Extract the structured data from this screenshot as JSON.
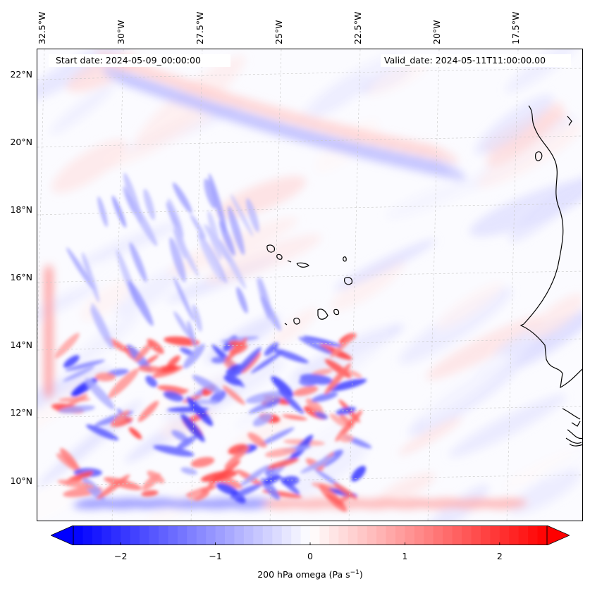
{
  "header": {
    "start_date": "Start date: 2024-05-09_00:00:00",
    "valid_date": "Valid_date: 2024-05-11T11:00:00.00"
  },
  "axes": {
    "lon_labels": [
      "32.5°W",
      "30°W",
      "27.5°W",
      "25°W",
      "22.5°W",
      "20°W",
      "17.5°W"
    ],
    "lat_labels": [
      "22°N",
      "20°N",
      "18°N",
      "16°N",
      "14°N",
      "12°N",
      "10°N"
    ]
  },
  "colorbar": {
    "ticks": [
      "−2",
      "−1",
      "0",
      "1",
      "2"
    ],
    "label_prefix": "200 hPa omega (Pa s",
    "label_sup": "−1",
    "label_suffix": ")",
    "range": [
      -2.5,
      2.5
    ],
    "colormap": "bwr",
    "extend": "both"
  },
  "colors": {
    "positive": "#ff0000",
    "negative": "#0000ff",
    "neutral": "#ffffff",
    "coastline": "#000000",
    "gridline": "#c8c8c8"
  },
  "chart_data": {
    "type": "heatmap",
    "variable": "200 hPa omega",
    "units": "Pa s^-1",
    "xlim": [
      "32.5°W",
      "16°W"
    ],
    "ylim": [
      "9°N",
      "22.8°N"
    ],
    "grid": true
  }
}
